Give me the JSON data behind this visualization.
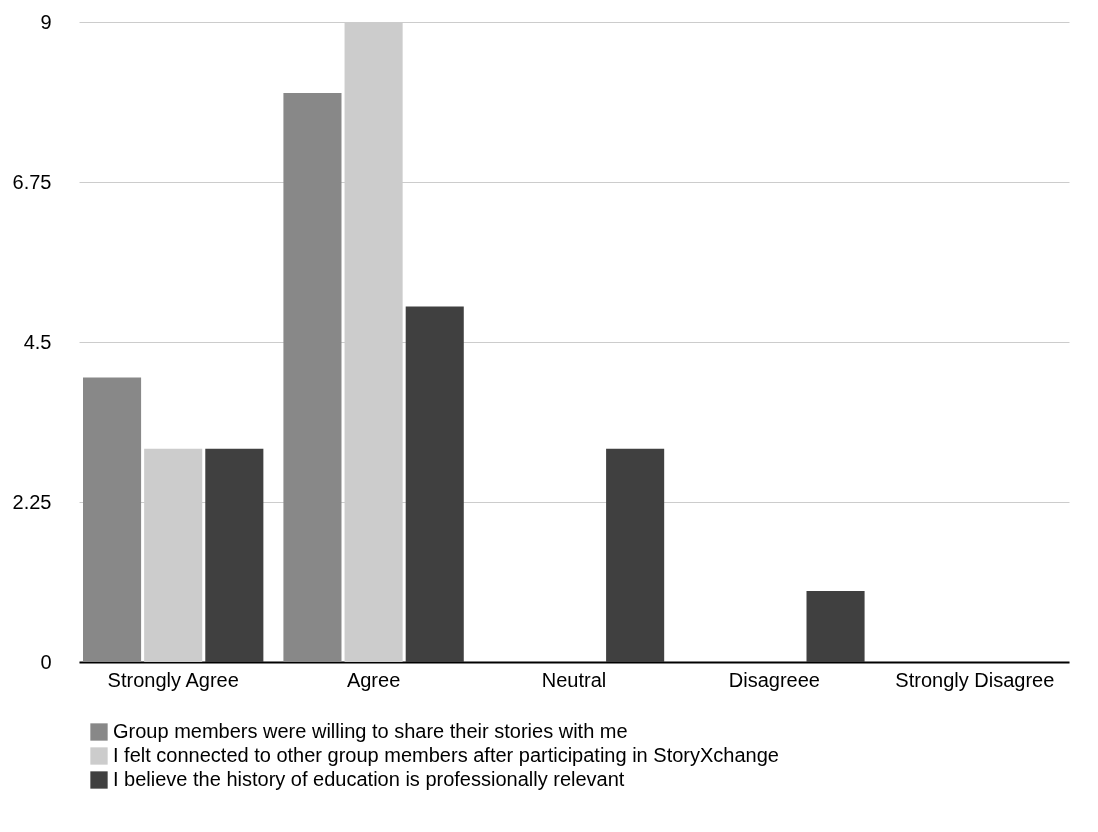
{
  "chart_data": {
    "type": "bar",
    "categories": [
      "Strongly Agree",
      "Agree",
      "Neutral",
      "Disagreee",
      "Strongly Disagree"
    ],
    "series": [
      {
        "name": "Group members were willing to share their stories with me",
        "color": "#888888",
        "values": [
          4,
          8,
          0,
          0,
          0
        ]
      },
      {
        "name": "I felt connected to other group members after participating in StoryXchange",
        "color": "#cccccc",
        "values": [
          3,
          9,
          0,
          0,
          0
        ]
      },
      {
        "name": "I believe the history of education is professionally relevant",
        "color": "#404040",
        "values": [
          3,
          5,
          3,
          1,
          0
        ]
      }
    ],
    "ylim": [
      0,
      9
    ],
    "yticks": [
      0,
      2.25,
      4.5,
      6.75,
      9
    ],
    "grid": "y",
    "legend": "bottom"
  }
}
